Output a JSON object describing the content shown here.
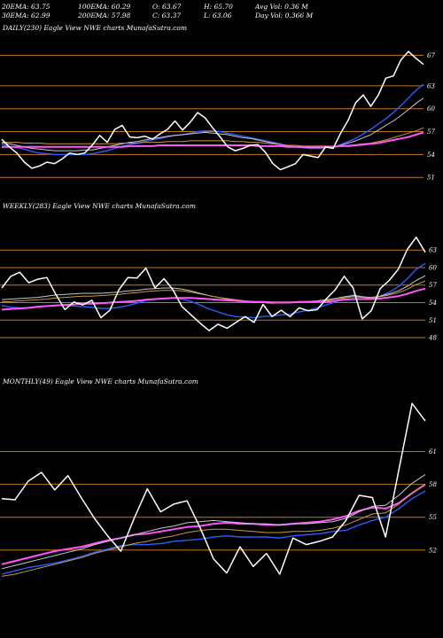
{
  "header": {
    "row1": [
      "20EMA: 63.75",
      "100EMA: 60.29",
      "O: 63.67",
      "H: 65.70",
      "Avg Vol: 0.36  M"
    ],
    "row2": [
      "30EMA: 62.99",
      "200EMA: 57.98",
      "C: 63.37",
      "L: 63.06",
      "Day Vol: 0.366  M"
    ]
  },
  "colors": {
    "background": "#000000",
    "price": "#ffffff",
    "ema_fast": "#2a5cff",
    "ema_slow": "#ff55ff",
    "ema_mid1": "#c8c8c8",
    "ema_mid2": "#c89a40",
    "levels": "#c07820"
  },
  "chart_data": [
    {
      "type": "line",
      "title": "DAILY(230) Eagle  View  NWE charts MunafaSutra.com",
      "yticks": [
        67,
        63,
        60,
        57,
        54,
        51
      ],
      "ylim": [
        49.4,
        69.6
      ],
      "series": [
        {
          "role": "price",
          "values": [
            56,
            55,
            54.2,
            53,
            52.2,
            52.5,
            53,
            52.8,
            53.4,
            54.2,
            54,
            54.2,
            55.2,
            56.5,
            55.6,
            57.3,
            57.8,
            56.3,
            56.2,
            56.4,
            56,
            56.7,
            57.3,
            58.4,
            57.2,
            58.2,
            59.5,
            58.8,
            57.5,
            56.3,
            55,
            54.5,
            54.8,
            55.2,
            55.3,
            54.3,
            52.8,
            52,
            52.4,
            52.8,
            54,
            53.8,
            53.6,
            55,
            54.8,
            56.8,
            58.5,
            60.8,
            61.8,
            60.3,
            61.8,
            64,
            64.3,
            66.4,
            67.5,
            66.6,
            65.8
          ]
        },
        {
          "role": "ema20",
          "values": [
            55.3,
            55.1,
            54.9,
            54.7,
            54.4,
            54.2,
            54.1,
            54,
            54,
            54,
            54,
            54,
            54.1,
            54.3,
            54.5,
            54.8,
            55.1,
            55.3,
            55.5,
            55.7,
            55.9,
            56.1,
            56.3,
            56.5,
            56.6,
            56.8,
            57,
            57.1,
            57.1,
            57,
            56.8,
            56.6,
            56.4,
            56.2,
            56,
            55.8,
            55.6,
            55.4,
            55.1,
            55,
            54.9,
            54.8,
            54.8,
            54.9,
            55,
            55.3,
            55.7,
            56.1,
            56.7,
            57.3,
            58,
            58.7,
            59.5,
            60.4,
            61.4,
            62.4,
            63.2
          ]
        },
        {
          "role": "ema30",
          "values": [
            55.5,
            55.4,
            55.2,
            55,
            54.8,
            54.7,
            54.6,
            54.5,
            54.5,
            54.5,
            54.5,
            54.6,
            54.6,
            54.8,
            55,
            55.2,
            55.4,
            55.6,
            55.7,
            55.9,
            56.1,
            56.2,
            56.4,
            56.5,
            56.6,
            56.7,
            56.8,
            56.9,
            56.8,
            56.7,
            56.6,
            56.4,
            56.2,
            56.1,
            55.9,
            55.7,
            55.5,
            55.3,
            55.1,
            55,
            54.9,
            54.9,
            54.9,
            54.9,
            55,
            55.2,
            55.5,
            55.8,
            56.2,
            56.6,
            57.2,
            57.8,
            58.4,
            59.1,
            59.9,
            60.7,
            61.4
          ]
        },
        {
          "role": "ema100",
          "values": [
            55.6,
            55.6,
            55.6,
            55.5,
            55.5,
            55.5,
            55.4,
            55.4,
            55.4,
            55.4,
            55.4,
            55.4,
            55.4,
            55.4,
            55.4,
            55.4,
            55.5,
            55.5,
            55.5,
            55.6,
            55.6,
            55.6,
            55.7,
            55.7,
            55.7,
            55.8,
            55.8,
            55.8,
            55.8,
            55.8,
            55.8,
            55.7,
            55.7,
            55.6,
            55.6,
            55.5,
            55.4,
            55.3,
            55.2,
            55.2,
            55.1,
            55.1,
            55.1,
            55.1,
            55.1,
            55.1,
            55.2,
            55.3,
            55.4,
            55.5,
            55.7,
            55.9,
            56.2,
            56.5,
            56.8,
            57.1,
            57.5
          ]
        },
        {
          "role": "ema200",
          "values": [
            55,
            55,
            55,
            55,
            55,
            55,
            55,
            55,
            55,
            55,
            55,
            55,
            55,
            55,
            55,
            55,
            55,
            55.1,
            55.1,
            55.1,
            55.1,
            55.2,
            55.2,
            55.2,
            55.2,
            55.2,
            55.2,
            55.2,
            55.2,
            55.2,
            55.2,
            55.2,
            55.2,
            55.2,
            55.1,
            55.1,
            55.1,
            55.1,
            55,
            55,
            55,
            55,
            55,
            55,
            55,
            55.1,
            55.1,
            55.2,
            55.3,
            55.4,
            55.5,
            55.7,
            55.9,
            56.1,
            56.3,
            56.6,
            56.9
          ]
        }
      ]
    },
    {
      "type": "line",
      "title": "WEEKLY(283) Eagle  View  NWE charts MunafaSutra.com",
      "yticks": [
        63,
        60,
        57,
        54,
        51,
        48
      ],
      "ylim": [
        43.3,
        69.1
      ],
      "series": [
        {
          "role": "price",
          "values": [
            56.5,
            58.5,
            59.2,
            57.4,
            58,
            58.3,
            55.4,
            52.8,
            54.1,
            53.6,
            54.4,
            51.4,
            52.7,
            56.2,
            58.3,
            58.2,
            59.9,
            56.5,
            58.1,
            56.2,
            53.3,
            51.9,
            50.5,
            49.2,
            50.3,
            49.6,
            50.6,
            51.6,
            50.6,
            53.7,
            51.6,
            52.7,
            51.6,
            53.1,
            52.6,
            52.8,
            54.6,
            56.2,
            58.5,
            56.5,
            51.2,
            52.6,
            56.4,
            57.8,
            59.7,
            63.1,
            65.2,
            62.6
          ]
        },
        {
          "role": "ema_fast",
          "values": [
            53.5,
            53.2,
            53.1,
            53.1,
            53.2,
            53.4,
            53.5,
            53.5,
            53.4,
            53.3,
            53.2,
            53,
            53,
            53.2,
            53.5,
            53.9,
            54.4,
            54.6,
            54.7,
            54.8,
            54.6,
            54.2,
            53.6,
            52.9,
            52.4,
            51.9,
            51.6,
            51.5,
            51.4,
            51.6,
            51.7,
            51.9,
            52,
            52.4,
            52.7,
            53.1,
            53.6,
            54.1,
            54.8,
            55.3,
            55,
            54.7,
            55.1,
            55.8,
            56.7,
            58.1,
            59.7,
            60.7
          ]
        },
        {
          "role": "ema_mid1",
          "values": [
            54.5,
            54.6,
            54.7,
            54.8,
            54.9,
            55.1,
            55.3,
            55.4,
            55.5,
            55.6,
            55.6,
            55.6,
            55.7,
            55.8,
            56,
            56.1,
            56.3,
            56.4,
            56.5,
            56.5,
            56.3,
            56,
            55.6,
            55.2,
            54.9,
            54.6,
            54.4,
            54.2,
            54,
            54,
            53.9,
            54,
            54,
            54.1,
            54.2,
            54.3,
            54.5,
            54.7,
            55,
            55.2,
            55,
            54.9,
            55.1,
            55.5,
            56,
            56.8,
            57.8,
            58.6
          ]
        },
        {
          "role": "ema_mid2",
          "values": [
            54.1,
            54.2,
            54.3,
            54.4,
            54.5,
            54.6,
            54.8,
            54.9,
            55,
            55.1,
            55.1,
            55.2,
            55.3,
            55.4,
            55.6,
            55.7,
            55.9,
            56,
            56.1,
            56.1,
            56,
            55.8,
            55.5,
            55.2,
            54.9,
            54.7,
            54.5,
            54.3,
            54.2,
            54.2,
            54.1,
            54.1,
            54.1,
            54.2,
            54.2,
            54.3,
            54.4,
            54.6,
            54.8,
            55,
            54.9,
            54.8,
            55,
            55.3,
            55.7,
            56.3,
            57.1,
            57.7
          ]
        },
        {
          "role": "ema_slow",
          "values": [
            52.8,
            52.9,
            53,
            53.1,
            53.3,
            53.4,
            53.5,
            53.6,
            53.7,
            53.8,
            53.8,
            53.9,
            54,
            54.1,
            54.2,
            54.3,
            54.5,
            54.6,
            54.7,
            54.8,
            54.8,
            54.8,
            54.7,
            54.6,
            54.5,
            54.4,
            54.3,
            54.2,
            54.1,
            54.1,
            54,
            54,
            54,
            54.1,
            54.1,
            54.2,
            54.2,
            54.3,
            54.5,
            54.6,
            54.6,
            54.6,
            54.7,
            54.9,
            55.1,
            55.5,
            56,
            56.4
          ]
        }
      ]
    },
    {
      "type": "line",
      "title": "MONTHLY(49) Eagle  View  NWE charts MunafaSutra.com",
      "yticks": [
        61,
        58,
        55,
        52
      ],
      "ylim": [
        45.1,
        66.8
      ],
      "series": [
        {
          "role": "price",
          "values": [
            56.7,
            56.6,
            58.3,
            59.1,
            57.5,
            58.8,
            56.8,
            54.9,
            53.3,
            51.9,
            54.9,
            57.6,
            55.5,
            56.2,
            56.5,
            54,
            51.2,
            49.9,
            52.3,
            50.5,
            51.7,
            49.8,
            53.1,
            52.5,
            52.8,
            53.2,
            54.7,
            57,
            56.8,
            53.2,
            59.3,
            65.4,
            63.8
          ]
        },
        {
          "role": "ema_fast",
          "values": [
            49.8,
            50.1,
            50.4,
            50.6,
            50.8,
            51.1,
            51.4,
            51.8,
            52.1,
            52.4,
            52.5,
            52.5,
            52.6,
            52.8,
            52.9,
            53,
            53.2,
            53.3,
            53.2,
            53.2,
            53.2,
            53.1,
            53.3,
            53.4,
            53.5,
            53.7,
            53.8,
            54.3,
            54.7,
            55,
            55.8,
            56.7,
            57.4
          ]
        },
        {
          "role": "ema_slow",
          "values": [
            50.7,
            51,
            51.3,
            51.6,
            51.9,
            52.1,
            52.3,
            52.6,
            52.9,
            53.1,
            53.4,
            53.5,
            53.7,
            53.9,
            54.1,
            54.2,
            54.4,
            54.5,
            54.4,
            54.4,
            54.3,
            54.3,
            54.4,
            54.5,
            54.6,
            54.8,
            55.1,
            55.6,
            55.9,
            55.8,
            56.3,
            57.2,
            58
          ]
        },
        {
          "role": "ema_mid1",
          "values": [
            50.3,
            50.6,
            50.9,
            51.2,
            51.5,
            51.8,
            52.1,
            52.5,
            52.8,
            53.1,
            53.4,
            53.7,
            54,
            54.2,
            54.5,
            54.6,
            54.7,
            54.6,
            54.5,
            54.4,
            54.4,
            54.3,
            54.4,
            54.4,
            54.5,
            54.6,
            54.9,
            55.5,
            56,
            56.1,
            57,
            58.1,
            58.9
          ]
        },
        {
          "role": "ema_mid2",
          "values": [
            49.6,
            49.8,
            50.1,
            50.4,
            50.7,
            51,
            51.3,
            51.7,
            52,
            52.3,
            52.6,
            52.8,
            53.1,
            53.3,
            53.6,
            53.8,
            53.9,
            53.9,
            53.8,
            53.7,
            53.6,
            53.6,
            53.7,
            53.7,
            53.8,
            54,
            54.3,
            54.8,
            55.3,
            55.4,
            56.2,
            57.2,
            58
          ]
        }
      ]
    }
  ]
}
